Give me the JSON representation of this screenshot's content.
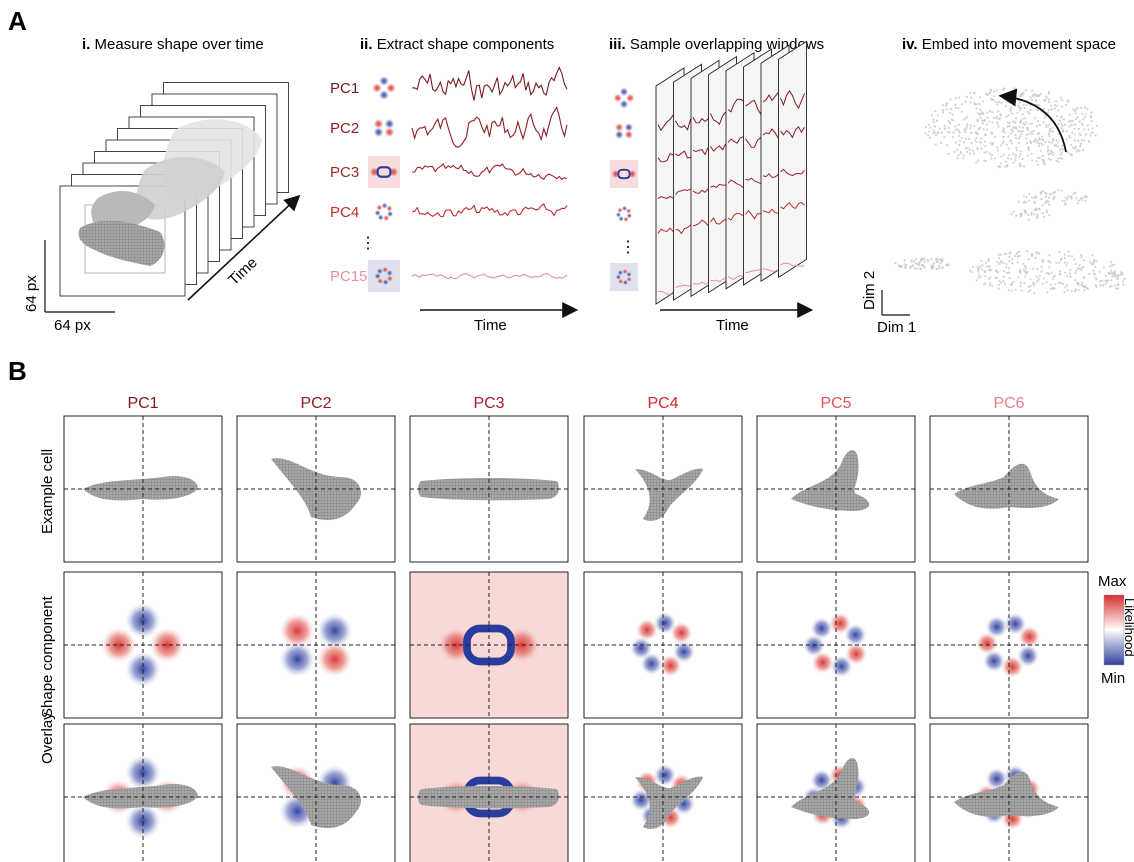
{
  "panelA": {
    "letter": "A",
    "steps": [
      {
        "num": "i.",
        "text": "Measure shape over time"
      },
      {
        "num": "ii.",
        "text": "Extract shape components"
      },
      {
        "num": "iii.",
        "text": "Sample overlapping windows"
      },
      {
        "num": "iv.",
        "text": "Embed into movement space"
      }
    ],
    "axis_y_px": "64 px",
    "axis_x_px": "64 px",
    "time_label": "Time",
    "pcs": [
      {
        "label": "PC1",
        "color": "#7a1a1f"
      },
      {
        "label": "PC2",
        "color": "#8e1d24"
      },
      {
        "label": "PC3",
        "color": "#a4202a"
      },
      {
        "label": "PC4",
        "color": "#c22b32"
      },
      {
        "label": "PC15",
        "color": "#e8909a"
      }
    ],
    "ellipsis": "⋮",
    "dim1": "Dim 1",
    "dim2": "Dim 2"
  },
  "panelB": {
    "letter": "B",
    "columns": [
      {
        "label": "PC1",
        "color": "#7a1a1f"
      },
      {
        "label": "PC2",
        "color": "#8e1d24"
      },
      {
        "label": "PC3",
        "color": "#a4202a"
      },
      {
        "label": "PC4",
        "color": "#d02a30"
      },
      {
        "label": "PC5",
        "color": "#e0555c"
      },
      {
        "label": "PC6",
        "color": "#e6808a"
      }
    ],
    "rows": [
      "Example cell",
      "Shape component",
      "Overlay"
    ],
    "colorbar": {
      "max": "Max",
      "min": "Min",
      "label": "Likelihood",
      "top_color": "#d62d2d",
      "mid_color": "#ffffff",
      "bottom_color": "#2f3f9e"
    }
  }
}
